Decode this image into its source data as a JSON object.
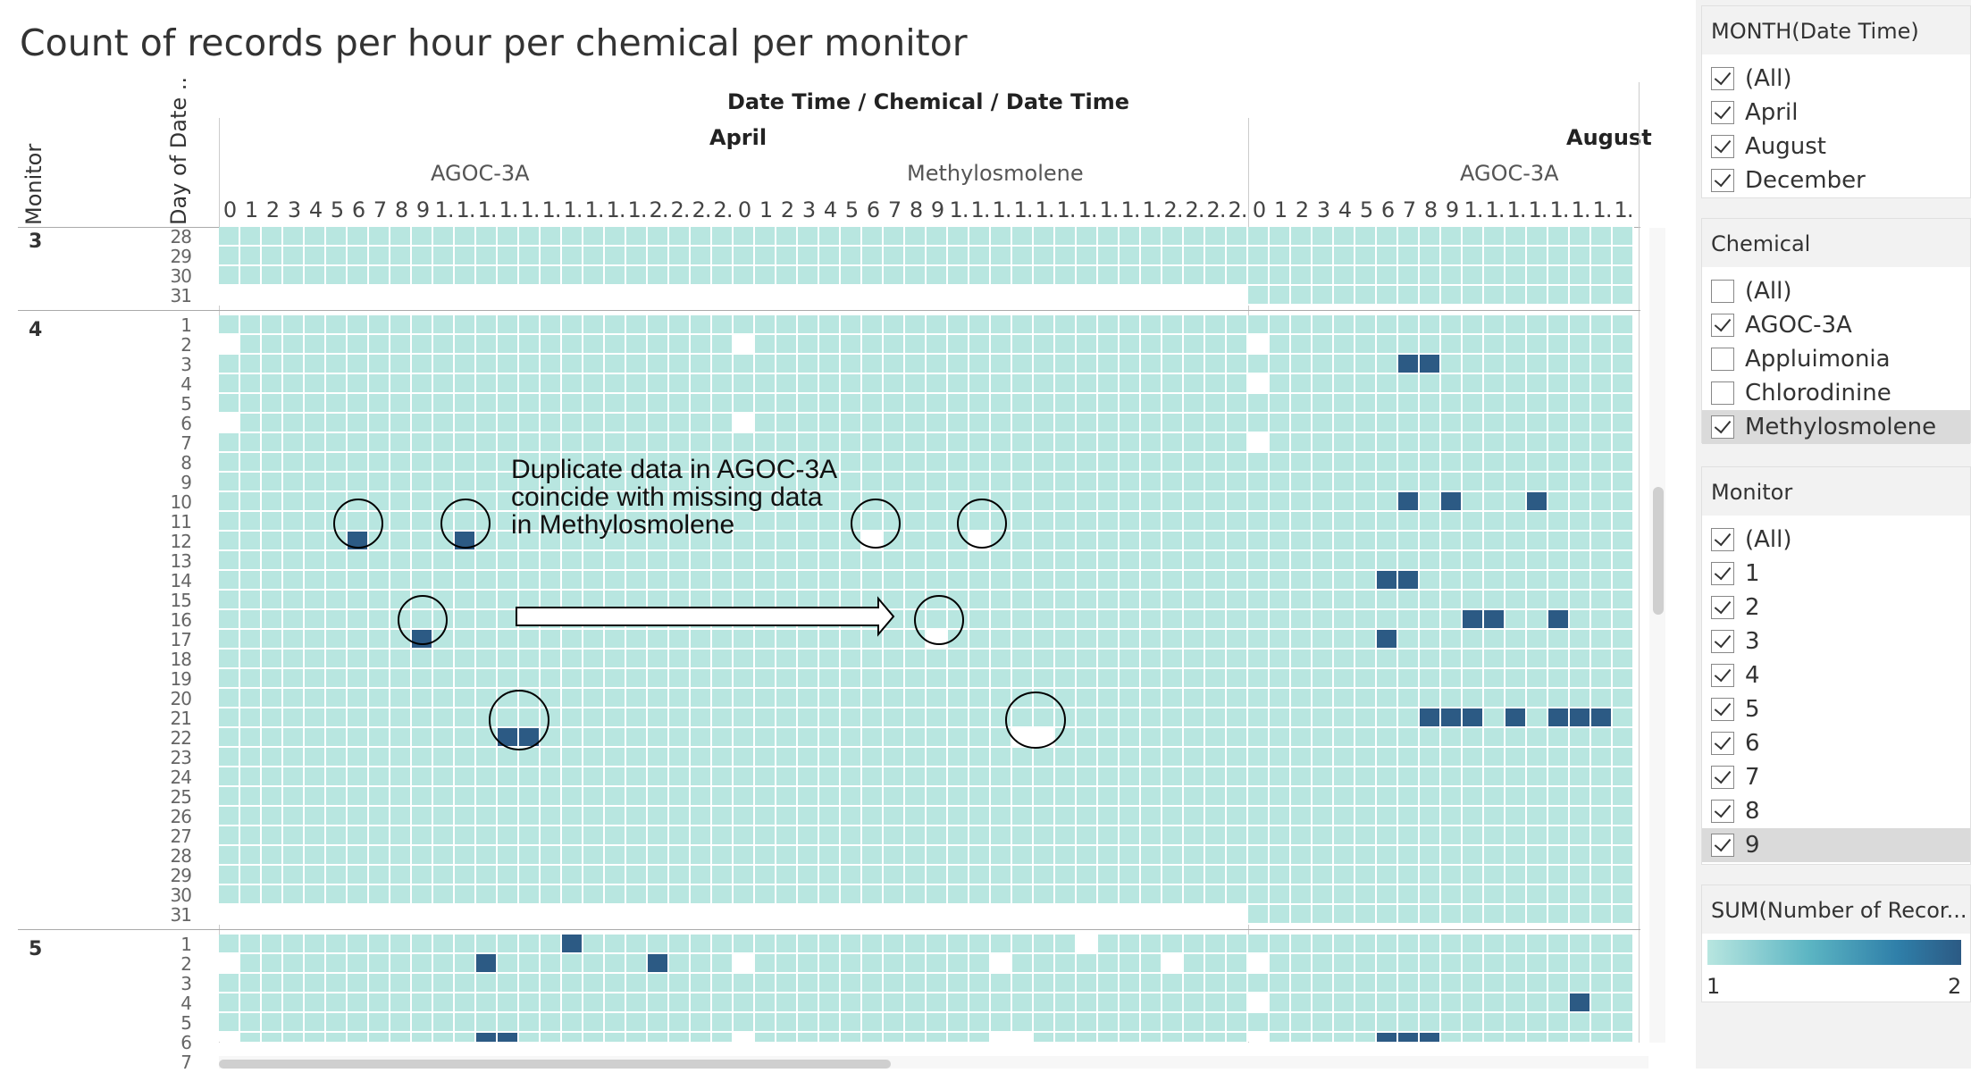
{
  "title": "Count of records per hour per chemical per monitor",
  "header": {
    "columns_title": "Date Time  /  Chemical  /  Date Time",
    "months": [
      "April",
      "August"
    ],
    "chemicals": [
      "AGOC-3A",
      "Methylosmolene",
      "AGOC-3A"
    ],
    "row_axis_labels": [
      "Monitor",
      "Day of Date .."
    ]
  },
  "hour_labels": {
    "april_agoc": [
      "0",
      "1",
      "2",
      "3",
      "4",
      "5",
      "6",
      "7",
      "8",
      "9",
      "1.",
      "1.",
      "1.",
      "1.",
      "1.",
      "1.",
      "1.",
      "1.",
      "1.",
      "1.",
      "2.",
      "2.",
      "2.",
      "2."
    ],
    "april_methyl": [
      "0",
      "1",
      "2",
      "3",
      "4",
      "5",
      "6",
      "7",
      "8",
      "9",
      "1.",
      "1.",
      "1.",
      "1.",
      "1.",
      "1.",
      "1.",
      "1.",
      "1.",
      "1.",
      "2.",
      "2.",
      "2.",
      "2."
    ],
    "august_agoc": [
      "0",
      "1",
      "2",
      "3",
      "4",
      "5",
      "6",
      "7",
      "8",
      "9",
      "1.",
      "1.",
      "1.",
      "1.",
      "1.",
      "1.",
      "1.",
      "1."
    ]
  },
  "monitors": [
    {
      "label": "3",
      "days": [
        "28",
        "29",
        "30",
        "31"
      ]
    },
    {
      "label": "4",
      "days": [
        "1",
        "2",
        "3",
        "4",
        "5",
        "6",
        "7",
        "8",
        "9",
        "10",
        "11",
        "12",
        "13",
        "14",
        "15",
        "16",
        "17",
        "18",
        "19",
        "20",
        "21",
        "22",
        "23",
        "24",
        "25",
        "26",
        "27",
        "28",
        "29",
        "30",
        "31"
      ]
    },
    {
      "label": "5",
      "days": [
        "1",
        "2",
        "3",
        "4",
        "5",
        "6",
        "7"
      ]
    }
  ],
  "annotation": {
    "lines": [
      "Duplicate data in AGOC-3A",
      "coincide with missing data",
      "in Methylosmolene"
    ]
  },
  "filters": {
    "month": {
      "title": "MONTH(Date Time)",
      "items": [
        {
          "label": "(All)",
          "checked": true
        },
        {
          "label": "April",
          "checked": true
        },
        {
          "label": "August",
          "checked": true
        },
        {
          "label": "December",
          "checked": true
        }
      ]
    },
    "chemical": {
      "title": "Chemical",
      "items": [
        {
          "label": "(All)",
          "checked": false
        },
        {
          "label": "AGOC-3A",
          "checked": true
        },
        {
          "label": "Appluimonia",
          "checked": false
        },
        {
          "label": "Chlorodinine",
          "checked": false
        },
        {
          "label": "Methylosmolene",
          "checked": true
        }
      ]
    },
    "monitor": {
      "title": "Monitor",
      "items": [
        {
          "label": "(All)",
          "checked": true
        },
        {
          "label": "1",
          "checked": true
        },
        {
          "label": "2",
          "checked": true
        },
        {
          "label": "3",
          "checked": true
        },
        {
          "label": "4",
          "checked": true
        },
        {
          "label": "5",
          "checked": true
        },
        {
          "label": "6",
          "checked": true
        },
        {
          "label": "7",
          "checked": true
        },
        {
          "label": "8",
          "checked": true
        },
        {
          "label": "9",
          "checked": true
        }
      ]
    }
  },
  "legend": {
    "title": "SUM(Number of Recor...",
    "min_label": "1",
    "max_label": "2",
    "colors": {
      "low": "#b8e6e0",
      "high": "#2c5a84",
      "missing": "#ffffff"
    }
  },
  "chart_data": {
    "type": "heatmap",
    "title": "Count of records per hour per chemical per monitor",
    "value_name": "SUM(Number of Records)",
    "color_range": [
      1,
      2
    ],
    "panels": [
      {
        "month": "April",
        "chemical": "AGOC-3A",
        "hours": 24
      },
      {
        "month": "April",
        "chemical": "Methylosmolene",
        "hours": 24
      },
      {
        "month": "August",
        "chemical": "AGOC-3A",
        "hours": 18
      }
    ],
    "default_value": 1,
    "cells_value_2": [
      {
        "panel": 0,
        "monitor": "4",
        "day": "12",
        "hour": 6
      },
      {
        "panel": 0,
        "monitor": "4",
        "day": "12",
        "hour": 11
      },
      {
        "panel": 0,
        "monitor": "4",
        "day": "17",
        "hour": 9
      },
      {
        "panel": 0,
        "monitor": "4",
        "day": "22",
        "hour": 13
      },
      {
        "panel": 0,
        "monitor": "4",
        "day": "22",
        "hour": 14
      },
      {
        "panel": 0,
        "monitor": "5",
        "day": "1",
        "hour": 16
      },
      {
        "panel": 0,
        "monitor": "5",
        "day": "2",
        "hour": 12
      },
      {
        "panel": 0,
        "monitor": "5",
        "day": "2",
        "hour": 20
      },
      {
        "panel": 0,
        "monitor": "5",
        "day": "6",
        "hour": 12
      },
      {
        "panel": 0,
        "monitor": "5",
        "day": "6",
        "hour": 13
      },
      {
        "panel": 2,
        "monitor": "4",
        "day": "3",
        "hour": 7
      },
      {
        "panel": 2,
        "monitor": "4",
        "day": "3",
        "hour": 8
      },
      {
        "panel": 2,
        "monitor": "4",
        "day": "10",
        "hour": 7
      },
      {
        "panel": 2,
        "monitor": "4",
        "day": "10",
        "hour": 9
      },
      {
        "panel": 2,
        "monitor": "4",
        "day": "10",
        "hour": 13
      },
      {
        "panel": 2,
        "monitor": "4",
        "day": "14",
        "hour": 6
      },
      {
        "panel": 2,
        "monitor": "4",
        "day": "14",
        "hour": 7
      },
      {
        "panel": 2,
        "monitor": "4",
        "day": "16",
        "hour": 10
      },
      {
        "panel": 2,
        "monitor": "4",
        "day": "16",
        "hour": 11
      },
      {
        "panel": 2,
        "monitor": "4",
        "day": "16",
        "hour": 14
      },
      {
        "panel": 2,
        "monitor": "4",
        "day": "17",
        "hour": 6
      },
      {
        "panel": 2,
        "monitor": "4",
        "day": "21",
        "hour": 8
      },
      {
        "panel": 2,
        "monitor": "4",
        "day": "21",
        "hour": 9
      },
      {
        "panel": 2,
        "monitor": "4",
        "day": "21",
        "hour": 10
      },
      {
        "panel": 2,
        "monitor": "4",
        "day": "21",
        "hour": 12
      },
      {
        "panel": 2,
        "monitor": "4",
        "day": "21",
        "hour": 14
      },
      {
        "panel": 2,
        "monitor": "4",
        "day": "21",
        "hour": 15
      },
      {
        "panel": 2,
        "monitor": "4",
        "day": "21",
        "hour": 16
      },
      {
        "panel": 2,
        "monitor": "5",
        "day": "4",
        "hour": 15
      },
      {
        "panel": 2,
        "monitor": "5",
        "day": "6",
        "hour": 6
      },
      {
        "panel": 2,
        "monitor": "5",
        "day": "6",
        "hour": 7
      },
      {
        "panel": 2,
        "monitor": "5",
        "day": "6",
        "hour": 8
      }
    ],
    "cells_missing": [
      {
        "panel": 0,
        "monitor": "3",
        "day": "31",
        "hour": "all"
      },
      {
        "panel": 1,
        "monitor": "3",
        "day": "31",
        "hour": "all"
      },
      {
        "panel": 0,
        "monitor": "4",
        "day": "31",
        "hour": "all"
      },
      {
        "panel": 1,
        "monitor": "4",
        "day": "31",
        "hour": "all"
      },
      {
        "panel": 0,
        "monitor": "4",
        "day": "2",
        "hour": 0
      },
      {
        "panel": 0,
        "monitor": "4",
        "day": "6",
        "hour": 0
      },
      {
        "panel": 1,
        "monitor": "4",
        "day": "2",
        "hour": 0
      },
      {
        "panel": 1,
        "monitor": "4",
        "day": "6",
        "hour": 0
      },
      {
        "panel": 1,
        "monitor": "4",
        "day": "12",
        "hour": 6
      },
      {
        "panel": 1,
        "monitor": "4",
        "day": "12",
        "hour": 11
      },
      {
        "panel": 1,
        "monitor": "4",
        "day": "17",
        "hour": 9
      },
      {
        "panel": 1,
        "monitor": "4",
        "day": "22",
        "hour": 13
      },
      {
        "panel": 1,
        "monitor": "4",
        "day": "22",
        "hour": 14
      },
      {
        "panel": 2,
        "monitor": "4",
        "day": "2",
        "hour": 0
      },
      {
        "panel": 2,
        "monitor": "4",
        "day": "4",
        "hour": 0
      },
      {
        "panel": 2,
        "monitor": "4",
        "day": "7",
        "hour": 0
      },
      {
        "panel": 0,
        "monitor": "5",
        "day": "2",
        "hour": 0
      },
      {
        "panel": 0,
        "monitor": "5",
        "day": "6",
        "hour": 0
      },
      {
        "panel": 1,
        "monitor": "5",
        "day": "2",
        "hour": 0
      },
      {
        "panel": 1,
        "monitor": "5",
        "day": "6",
        "hour": 0
      },
      {
        "panel": 1,
        "monitor": "5",
        "day": "1",
        "hour": 16
      },
      {
        "panel": 1,
        "monitor": "5",
        "day": "2",
        "hour": 12
      },
      {
        "panel": 1,
        "monitor": "5",
        "day": "2",
        "hour": 20
      },
      {
        "panel": 1,
        "monitor": "5",
        "day": "6",
        "hour": 12
      },
      {
        "panel": 1,
        "monitor": "5",
        "day": "6",
        "hour": 13
      },
      {
        "panel": 2,
        "monitor": "5",
        "day": "2",
        "hour": 0
      },
      {
        "panel": 2,
        "monitor": "5",
        "day": "4",
        "hour": 0
      },
      {
        "panel": 2,
        "monitor": "5",
        "day": "6",
        "hour": 0
      }
    ]
  }
}
